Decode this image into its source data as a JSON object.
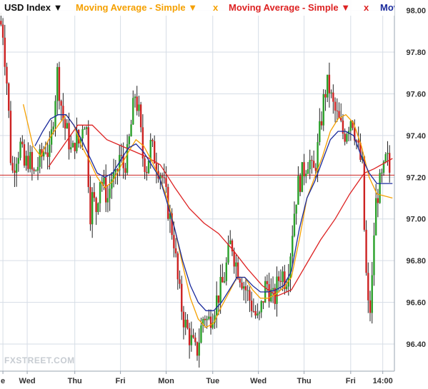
{
  "toolbar": {
    "symbol": {
      "label": "USD Index",
      "caret": "▼",
      "color": "#111111"
    },
    "indicators": [
      {
        "label": "Moving Average - Simple",
        "caret": "▼",
        "close": "x",
        "color": "#f5a000"
      },
      {
        "label": "Moving Average - Simple",
        "caret": "▼",
        "close": "x",
        "color": "#dd2222"
      },
      {
        "label": "Mov",
        "color": "#1a2a9c"
      }
    ]
  },
  "watermark": "FXSTREET.COM",
  "colors": {
    "up": "#2aa02a",
    "down": "#cc2222",
    "grid": "#d6dde6",
    "axis_text": "#333333",
    "ref_line": "#cc2222",
    "ma_fast": "#1a2a9c",
    "ma_mid": "#f5a000",
    "ma_slow": "#dd2222"
  },
  "chart_data": {
    "type": "candlestick",
    "ylim": [
      96.27,
      98.05
    ],
    "y_ticks": [
      "98.00",
      "97.80",
      "97.60",
      "97.40",
      "97.20",
      "97.00",
      "96.80",
      "96.60",
      "96.40"
    ],
    "x_labels": [
      {
        "label": "e",
        "x": 0.3
      },
      {
        "label": "Wed",
        "x": 2.8
      },
      {
        "label": "Thu",
        "x": 7.7
      },
      {
        "label": "Fri",
        "x": 12.4
      },
      {
        "label": "Mon",
        "x": 17.1
      },
      {
        "label": "Tue",
        "x": 21.9
      },
      {
        "label": "Wed",
        "x": 26.6
      },
      {
        "label": "Thu",
        "x": 31.3
      },
      {
        "label": "Fri",
        "x": 36.1
      },
      {
        "label": "14:00",
        "x": 39.4
      }
    ],
    "x_range": [
      0,
      40.6
    ],
    "reference_line": 97.21,
    "close_points": [
      [
        0,
        97.95
      ],
      [
        0.3,
        97.9
      ],
      [
        0.8,
        97.6
      ],
      [
        1.2,
        97.2
      ],
      [
        1.6,
        97.3
      ],
      [
        2.1,
        97.35
      ],
      [
        2.5,
        97.25
      ],
      [
        3.0,
        97.3
      ],
      [
        3.4,
        97.2
      ],
      [
        3.8,
        97.25
      ],
      [
        4.3,
        97.3
      ],
      [
        4.7,
        97.35
      ],
      [
        5.1,
        97.3
      ],
      [
        5.5,
        97.5
      ],
      [
        5.9,
        97.7
      ],
      [
        6.3,
        97.55
      ],
      [
        6.6,
        97.45
      ],
      [
        7.0,
        97.4
      ],
      [
        7.4,
        97.3
      ],
      [
        7.8,
        97.4
      ],
      [
        8.2,
        97.35
      ],
      [
        8.6,
        97.5
      ],
      [
        9.0,
        97.4
      ],
      [
        9.2,
        97.0
      ],
      [
        9.5,
        97.1
      ],
      [
        9.9,
        97.05
      ],
      [
        10.3,
        97.2
      ],
      [
        10.7,
        97.15
      ],
      [
        11.1,
        97.1
      ],
      [
        11.5,
        97.2
      ],
      [
        11.9,
        97.18
      ],
      [
        12.3,
        97.3
      ],
      [
        12.7,
        97.25
      ],
      [
        13.1,
        97.3
      ],
      [
        13.5,
        97.45
      ],
      [
        13.9,
        97.6
      ],
      [
        14.3,
        97.5
      ],
      [
        14.7,
        97.3
      ],
      [
        15.1,
        97.25
      ],
      [
        15.5,
        97.35
      ],
      [
        15.9,
        97.3
      ],
      [
        16.3,
        97.25
      ],
      [
        16.7,
        97.2
      ],
      [
        17.1,
        97.1
      ],
      [
        17.5,
        97.0
      ],
      [
        17.9,
        96.9
      ],
      [
        18.3,
        96.7
      ],
      [
        18.6,
        96.6
      ],
      [
        19.0,
        96.5
      ],
      [
        19.4,
        96.45
      ],
      [
        19.8,
        96.4
      ],
      [
        20.2,
        96.35
      ],
      [
        20.6,
        96.45
      ],
      [
        21.0,
        96.55
      ],
      [
        21.4,
        96.5
      ],
      [
        21.8,
        96.55
      ],
      [
        22.2,
        96.6
      ],
      [
        22.6,
        96.65
      ],
      [
        23.0,
        96.7
      ],
      [
        23.4,
        96.8
      ],
      [
        23.8,
        96.9
      ],
      [
        24.2,
        96.8
      ],
      [
        24.6,
        96.75
      ],
      [
        25.0,
        96.7
      ],
      [
        25.4,
        96.65
      ],
      [
        25.8,
        96.6
      ],
      [
        26.2,
        96.55
      ],
      [
        26.6,
        96.5
      ],
      [
        27.0,
        96.6
      ],
      [
        27.4,
        96.7
      ],
      [
        27.8,
        96.65
      ],
      [
        28.2,
        96.6
      ],
      [
        28.6,
        96.7
      ],
      [
        29.0,
        96.75
      ],
      [
        29.4,
        96.7
      ],
      [
        29.8,
        96.8
      ],
      [
        30.2,
        97.0
      ],
      [
        30.6,
        97.15
      ],
      [
        31.0,
        97.2
      ],
      [
        31.4,
        97.25
      ],
      [
        31.8,
        97.3
      ],
      [
        32.2,
        97.2
      ],
      [
        32.6,
        97.3
      ],
      [
        33.0,
        97.45
      ],
      [
        33.4,
        97.6
      ],
      [
        33.8,
        97.65
      ],
      [
        34.2,
        97.55
      ],
      [
        34.6,
        97.5
      ],
      [
        35.0,
        97.45
      ],
      [
        35.4,
        97.4
      ],
      [
        35.8,
        97.45
      ],
      [
        36.2,
        97.5
      ],
      [
        36.6,
        97.4
      ],
      [
        37.0,
        97.3
      ],
      [
        37.3,
        97.25
      ],
      [
        37.6,
        96.8
      ],
      [
        38.0,
        96.5
      ],
      [
        38.3,
        96.7
      ],
      [
        38.6,
        97.05
      ],
      [
        39.0,
        97.15
      ],
      [
        39.4,
        97.2
      ],
      [
        39.8,
        97.3
      ],
      [
        40.2,
        97.2
      ]
    ],
    "ma_slow": [
      [
        5.0,
        97.25
      ],
      [
        6.5,
        97.35
      ],
      [
        8.0,
        97.45
      ],
      [
        9.5,
        97.45
      ],
      [
        11.0,
        97.38
      ],
      [
        13.0,
        97.34
      ],
      [
        15.0,
        97.3
      ],
      [
        16.5,
        97.26
      ],
      [
        18.0,
        97.15
      ],
      [
        19.5,
        97.05
      ],
      [
        21.0,
        96.98
      ],
      [
        22.5,
        96.93
      ],
      [
        24.0,
        96.85
      ],
      [
        25.5,
        96.76
      ],
      [
        27.0,
        96.68
      ],
      [
        28.5,
        96.63
      ],
      [
        29.5,
        96.65
      ],
      [
        30.0,
        96.66
      ],
      [
        31.5,
        96.78
      ],
      [
        33.0,
        96.9
      ],
      [
        34.5,
        97.0
      ],
      [
        36.0,
        97.12
      ],
      [
        37.5,
        97.22
      ],
      [
        38.5,
        97.24
      ],
      [
        40.4,
        97.29
      ]
    ],
    "ma_mid": [
      [
        2.4,
        97.55
      ],
      [
        3.4,
        97.35
      ],
      [
        4.2,
        97.3
      ],
      [
        5.0,
        97.38
      ],
      [
        6.0,
        97.45
      ],
      [
        6.8,
        97.5
      ],
      [
        7.6,
        97.45
      ],
      [
        8.4,
        97.35
      ],
      [
        9.2,
        97.28
      ],
      [
        10.0,
        97.2
      ],
      [
        10.8,
        97.15
      ],
      [
        11.6,
        97.18
      ],
      [
        12.4,
        97.25
      ],
      [
        13.2,
        97.32
      ],
      [
        14.0,
        97.38
      ],
      [
        14.8,
        97.35
      ],
      [
        15.6,
        97.28
      ],
      [
        16.4,
        97.2
      ],
      [
        17.2,
        97.1
      ],
      [
        18.0,
        96.95
      ],
      [
        18.8,
        96.78
      ],
      [
        19.6,
        96.62
      ],
      [
        20.4,
        96.52
      ],
      [
        21.2,
        96.48
      ],
      [
        22.0,
        96.5
      ],
      [
        22.8,
        96.58
      ],
      [
        23.6,
        96.65
      ],
      [
        24.4,
        96.72
      ],
      [
        25.2,
        96.72
      ],
      [
        26.0,
        96.66
      ],
      [
        26.8,
        96.62
      ],
      [
        27.6,
        96.62
      ],
      [
        28.4,
        96.64
      ],
      [
        29.2,
        96.67
      ],
      [
        30.0,
        96.72
      ],
      [
        30.8,
        96.9
      ],
      [
        31.6,
        97.1
      ],
      [
        32.4,
        97.2
      ],
      [
        33.2,
        97.3
      ],
      [
        34.0,
        97.42
      ],
      [
        34.8,
        97.48
      ],
      [
        35.6,
        97.5
      ],
      [
        36.4,
        97.46
      ],
      [
        37.2,
        97.35
      ],
      [
        38.0,
        97.2
      ],
      [
        38.8,
        97.12
      ],
      [
        40.4,
        97.1
      ]
    ],
    "ma_fast": [
      [
        3.6,
        97.35
      ],
      [
        4.4,
        97.42
      ],
      [
        5.2,
        97.48
      ],
      [
        6.0,
        97.5
      ],
      [
        6.8,
        97.5
      ],
      [
        7.6,
        97.45
      ],
      [
        8.4,
        97.38
      ],
      [
        9.2,
        97.3
      ],
      [
        10.0,
        97.22
      ],
      [
        10.8,
        97.2
      ],
      [
        11.6,
        97.22
      ],
      [
        12.4,
        97.28
      ],
      [
        13.2,
        97.34
      ],
      [
        14.0,
        97.36
      ],
      [
        14.8,
        97.32
      ],
      [
        15.6,
        97.26
      ],
      [
        16.4,
        97.2
      ],
      [
        17.2,
        97.08
      ],
      [
        18.0,
        96.95
      ],
      [
        18.8,
        96.8
      ],
      [
        19.6,
        96.68
      ],
      [
        20.4,
        96.6
      ],
      [
        21.2,
        96.56
      ],
      [
        22.0,
        96.56
      ],
      [
        22.8,
        96.6
      ],
      [
        23.6,
        96.66
      ],
      [
        24.4,
        96.72
      ],
      [
        25.2,
        96.72
      ],
      [
        26.0,
        96.68
      ],
      [
        26.8,
        96.65
      ],
      [
        27.6,
        96.65
      ],
      [
        28.4,
        96.66
      ],
      [
        29.2,
        96.68
      ],
      [
        30.0,
        96.75
      ],
      [
        30.8,
        96.95
      ],
      [
        31.6,
        97.1
      ],
      [
        32.4,
        97.18
      ],
      [
        33.2,
        97.28
      ],
      [
        34.0,
        97.38
      ],
      [
        34.8,
        97.42
      ],
      [
        35.6,
        97.42
      ],
      [
        36.4,
        97.4
      ],
      [
        37.2,
        97.3
      ],
      [
        38.0,
        97.22
      ],
      [
        38.8,
        97.17
      ],
      [
        40.4,
        97.17
      ]
    ]
  }
}
